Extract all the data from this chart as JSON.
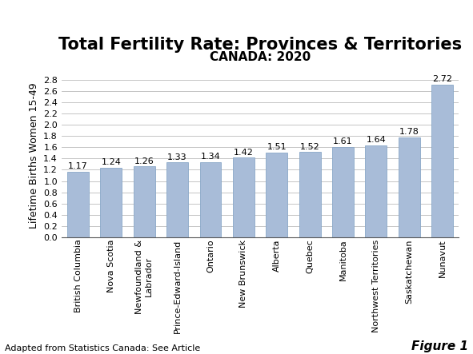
{
  "title": "Total Fertility Rate: Provinces & Territories",
  "subtitle": "CANADA: 2020",
  "ylabel": "Lifetime Births Women 15-49",
  "footer_left": "Adapted from Statistics Canada: See Article",
  "footer_right": "Figure 1",
  "categories": [
    "British Columbia",
    "Nova Scotia",
    "Newfoundland &\nLabrador",
    "Prince-Edward-Island",
    "Ontario",
    "New Brunswick",
    "Alberta",
    "Quebec",
    "Manitoba",
    "Northwest Territories",
    "Saskatchewan",
    "Nunavut"
  ],
  "values": [
    1.17,
    1.24,
    1.26,
    1.33,
    1.34,
    1.42,
    1.51,
    1.52,
    1.61,
    1.64,
    1.78,
    2.72
  ],
  "bar_color": "#a8bcd8",
  "bar_edge_color": "#8aa8c8",
  "ylim": [
    0,
    2.9
  ],
  "yticks": [
    0.0,
    0.2,
    0.4,
    0.6,
    0.8,
    1.0,
    1.2,
    1.4,
    1.6,
    1.8,
    2.0,
    2.2,
    2.4,
    2.6,
    2.8
  ],
  "title_fontsize": 15,
  "subtitle_fontsize": 11,
  "ylabel_fontsize": 9,
  "tick_fontsize": 8,
  "value_label_fontsize": 8,
  "footer_fontsize": 8,
  "figure_label_fontsize": 11,
  "background_color": "#ffffff",
  "grid_color": "#bbbbbb"
}
